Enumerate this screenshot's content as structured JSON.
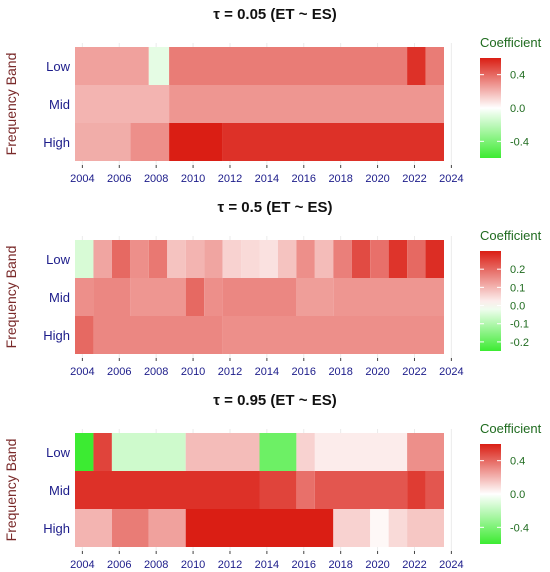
{
  "chart_data": [
    {
      "type": "heatmap",
      "title": "τ = 0.05  (ET ~ ES)",
      "ylabel": "Frequency Band",
      "rows": [
        "Low",
        "Mid",
        "High"
      ],
      "xlim": [
        2003.6,
        2023.6
      ],
      "x_ticks": [
        "2004",
        "2006",
        "2008",
        "2010",
        "2012",
        "2014",
        "2016",
        "2018",
        "2020",
        "2022",
        "2024"
      ],
      "x_tick_values": [
        2004,
        2006,
        2008,
        2010,
        2012,
        2014,
        2016,
        2018,
        2020,
        2022,
        2024
      ],
      "legend": {
        "title": "Coefficient",
        "placement": "right",
        "range": [
          -0.6,
          0.6
        ],
        "ticks": [
          0.4,
          0.0,
          -0.4
        ],
        "tick_labels": [
          "0.4",
          "0.0",
          "-0.4"
        ]
      },
      "cells": [
        {
          "row": "Low",
          "x0": 2003.6,
          "x1": 2007.6,
          "value": 0.25
        },
        {
          "row": "Low",
          "x0": 2007.6,
          "x1": 2008.7,
          "value": -0.08
        },
        {
          "row": "Low",
          "x0": 2008.7,
          "x1": 2021.6,
          "value": 0.35
        },
        {
          "row": "Low",
          "x0": 2021.6,
          "x1": 2022.6,
          "value": 0.55
        },
        {
          "row": "Low",
          "x0": 2022.6,
          "x1": 2023.6,
          "value": 0.35
        },
        {
          "row": "Mid",
          "x0": 2003.6,
          "x1": 2008.7,
          "value": 0.2
        },
        {
          "row": "Mid",
          "x0": 2008.7,
          "x1": 2023.6,
          "value": 0.28
        },
        {
          "row": "High",
          "x0": 2003.6,
          "x1": 2006.6,
          "value": 0.22
        },
        {
          "row": "High",
          "x0": 2006.6,
          "x1": 2008.7,
          "value": 0.3
        },
        {
          "row": "High",
          "x0": 2008.7,
          "x1": 2010.7,
          "value": 0.62
        },
        {
          "row": "High",
          "x0": 2010.7,
          "x1": 2011.6,
          "value": 0.8
        },
        {
          "row": "High",
          "x0": 2011.6,
          "x1": 2023.6,
          "value": 0.55
        }
      ]
    },
    {
      "type": "heatmap",
      "title": "τ = 0.5  (ET ~ ES)",
      "ylabel": "Frequency Band",
      "rows": [
        "Low",
        "Mid",
        "High"
      ],
      "xlim": [
        2003.6,
        2023.6
      ],
      "x_ticks": [
        "2004",
        "2006",
        "2008",
        "2010",
        "2012",
        "2014",
        "2016",
        "2018",
        "2020",
        "2022",
        "2024"
      ],
      "x_tick_values": [
        2004,
        2006,
        2008,
        2010,
        2012,
        2014,
        2016,
        2018,
        2020,
        2022,
        2024
      ],
      "legend": {
        "title": "Coefficient",
        "placement": "right",
        "range": [
          -0.25,
          0.3
        ],
        "ticks": [
          0.2,
          0.1,
          0.0,
          -0.1,
          -0.2
        ],
        "tick_labels": [
          "0.2",
          "0.1",
          "0.0",
          "-0.1",
          "-0.2"
        ]
      },
      "cells": [
        {
          "row": "Low",
          "x0": 2003.6,
          "x1": 2004.6,
          "value": -0.05
        },
        {
          "row": "Low",
          "x0": 2004.6,
          "x1": 2005.6,
          "value": 0.12
        },
        {
          "row": "Low",
          "x0": 2005.6,
          "x1": 2006.6,
          "value": 0.2
        },
        {
          "row": "Low",
          "x0": 2006.6,
          "x1": 2007.6,
          "value": 0.15
        },
        {
          "row": "Low",
          "x0": 2007.6,
          "x1": 2008.6,
          "value": 0.18
        },
        {
          "row": "Low",
          "x0": 2008.6,
          "x1": 2009.6,
          "value": 0.08
        },
        {
          "row": "Low",
          "x0": 2009.6,
          "x1": 2010.6,
          "value": 0.1
        },
        {
          "row": "Low",
          "x0": 2010.6,
          "x1": 2011.6,
          "value": 0.12
        },
        {
          "row": "Low",
          "x0": 2011.6,
          "x1": 2012.6,
          "value": 0.06
        },
        {
          "row": "Low",
          "x0": 2012.6,
          "x1": 2013.6,
          "value": 0.05
        },
        {
          "row": "Low",
          "x0": 2013.6,
          "x1": 2014.6,
          "value": 0.04
        },
        {
          "row": "Low",
          "x0": 2014.6,
          "x1": 2015.6,
          "value": 0.08
        },
        {
          "row": "Low",
          "x0": 2015.6,
          "x1": 2016.6,
          "value": 0.15
        },
        {
          "row": "Low",
          "x0": 2016.6,
          "x1": 2017.6,
          "value": 0.09
        },
        {
          "row": "Low",
          "x0": 2017.6,
          "x1": 2018.6,
          "value": 0.17
        },
        {
          "row": "Low",
          "x0": 2018.6,
          "x1": 2019.6,
          "value": 0.24
        },
        {
          "row": "Low",
          "x0": 2019.6,
          "x1": 2020.6,
          "value": 0.19
        },
        {
          "row": "Low",
          "x0": 2020.6,
          "x1": 2021.6,
          "value": 0.27
        },
        {
          "row": "Low",
          "x0": 2021.6,
          "x1": 2022.6,
          "value": 0.2
        },
        {
          "row": "Low",
          "x0": 2022.6,
          "x1": 2023.6,
          "value": 0.28
        },
        {
          "row": "Mid",
          "x0": 2003.6,
          "x1": 2004.6,
          "value": 0.15
        },
        {
          "row": "Mid",
          "x0": 2004.6,
          "x1": 2006.6,
          "value": 0.16
        },
        {
          "row": "Mid",
          "x0": 2006.6,
          "x1": 2009.6,
          "value": 0.14
        },
        {
          "row": "Mid",
          "x0": 2009.6,
          "x1": 2010.6,
          "value": 0.2
        },
        {
          "row": "Mid",
          "x0": 2010.6,
          "x1": 2011.6,
          "value": 0.15
        },
        {
          "row": "Mid",
          "x0": 2011.6,
          "x1": 2015.6,
          "value": 0.16
        },
        {
          "row": "Mid",
          "x0": 2015.6,
          "x1": 2017.6,
          "value": 0.13
        },
        {
          "row": "Mid",
          "x0": 2017.6,
          "x1": 2023.6,
          "value": 0.14
        },
        {
          "row": "High",
          "x0": 2003.6,
          "x1": 2004.6,
          "value": 0.2
        },
        {
          "row": "High",
          "x0": 2004.6,
          "x1": 2011.6,
          "value": 0.16
        },
        {
          "row": "High",
          "x0": 2011.6,
          "x1": 2023.6,
          "value": 0.15
        }
      ]
    },
    {
      "type": "heatmap",
      "title": "τ = 0.95  (ET ~ ES)",
      "ylabel": "Frequency Band",
      "rows": [
        "Low",
        "Mid",
        "High"
      ],
      "xlim": [
        2003.6,
        2023.6
      ],
      "x_ticks": [
        "2004",
        "2006",
        "2008",
        "2010",
        "2012",
        "2014",
        "2016",
        "2018",
        "2020",
        "2022",
        "2024"
      ],
      "x_tick_values": [
        2004,
        2006,
        2008,
        2010,
        2012,
        2014,
        2016,
        2018,
        2020,
        2022,
        2024
      ],
      "legend": {
        "title": "Coefficient",
        "placement": "right",
        "range": [
          -0.6,
          0.6
        ],
        "ticks": [
          0.4,
          0.0,
          -0.4
        ],
        "tick_labels": [
          "0.4",
          "0.0",
          "-0.4"
        ]
      },
      "cells": [
        {
          "row": "Low",
          "x0": 2003.6,
          "x1": 2004.6,
          "value": -0.65
        },
        {
          "row": "Low",
          "x0": 2004.6,
          "x1": 2005.6,
          "value": 0.5
        },
        {
          "row": "Low",
          "x0": 2005.6,
          "x1": 2009.6,
          "value": -0.15
        },
        {
          "row": "Low",
          "x0": 2009.6,
          "x1": 2013.6,
          "value": 0.18
        },
        {
          "row": "Low",
          "x0": 2013.6,
          "x1": 2015.6,
          "value": -0.45
        },
        {
          "row": "Low",
          "x0": 2015.6,
          "x1": 2016.6,
          "value": 0.12
        },
        {
          "row": "Low",
          "x0": 2016.6,
          "x1": 2021.6,
          "value": 0.05
        },
        {
          "row": "Low",
          "x0": 2021.6,
          "x1": 2023.6,
          "value": 0.3
        },
        {
          "row": "Mid",
          "x0": 2003.6,
          "x1": 2013.6,
          "value": 0.55
        },
        {
          "row": "Mid",
          "x0": 2013.6,
          "x1": 2015.6,
          "value": 0.5
        },
        {
          "row": "Mid",
          "x0": 2015.6,
          "x1": 2016.6,
          "value": 0.38
        },
        {
          "row": "Mid",
          "x0": 2016.6,
          "x1": 2021.6,
          "value": 0.45
        },
        {
          "row": "Mid",
          "x0": 2021.6,
          "x1": 2022.6,
          "value": 0.52
        },
        {
          "row": "Mid",
          "x0": 2022.6,
          "x1": 2023.6,
          "value": 0.45
        },
        {
          "row": "High",
          "x0": 2003.6,
          "x1": 2005.6,
          "value": 0.2
        },
        {
          "row": "High",
          "x0": 2005.6,
          "x1": 2007.6,
          "value": 0.35
        },
        {
          "row": "High",
          "x0": 2007.6,
          "x1": 2009.6,
          "value": 0.25
        },
        {
          "row": "High",
          "x0": 2009.6,
          "x1": 2013.6,
          "value": 0.7
        },
        {
          "row": "High",
          "x0": 2013.6,
          "x1": 2017.6,
          "value": 0.6
        },
        {
          "row": "High",
          "x0": 2017.6,
          "x1": 2019.6,
          "value": 0.12
        },
        {
          "row": "High",
          "x0": 2019.6,
          "x1": 2020.6,
          "value": 0.02
        },
        {
          "row": "High",
          "x0": 2020.6,
          "x1": 2021.6,
          "value": 0.1
        },
        {
          "row": "High",
          "x0": 2021.6,
          "x1": 2023.6,
          "value": 0.15
        }
      ]
    }
  ]
}
